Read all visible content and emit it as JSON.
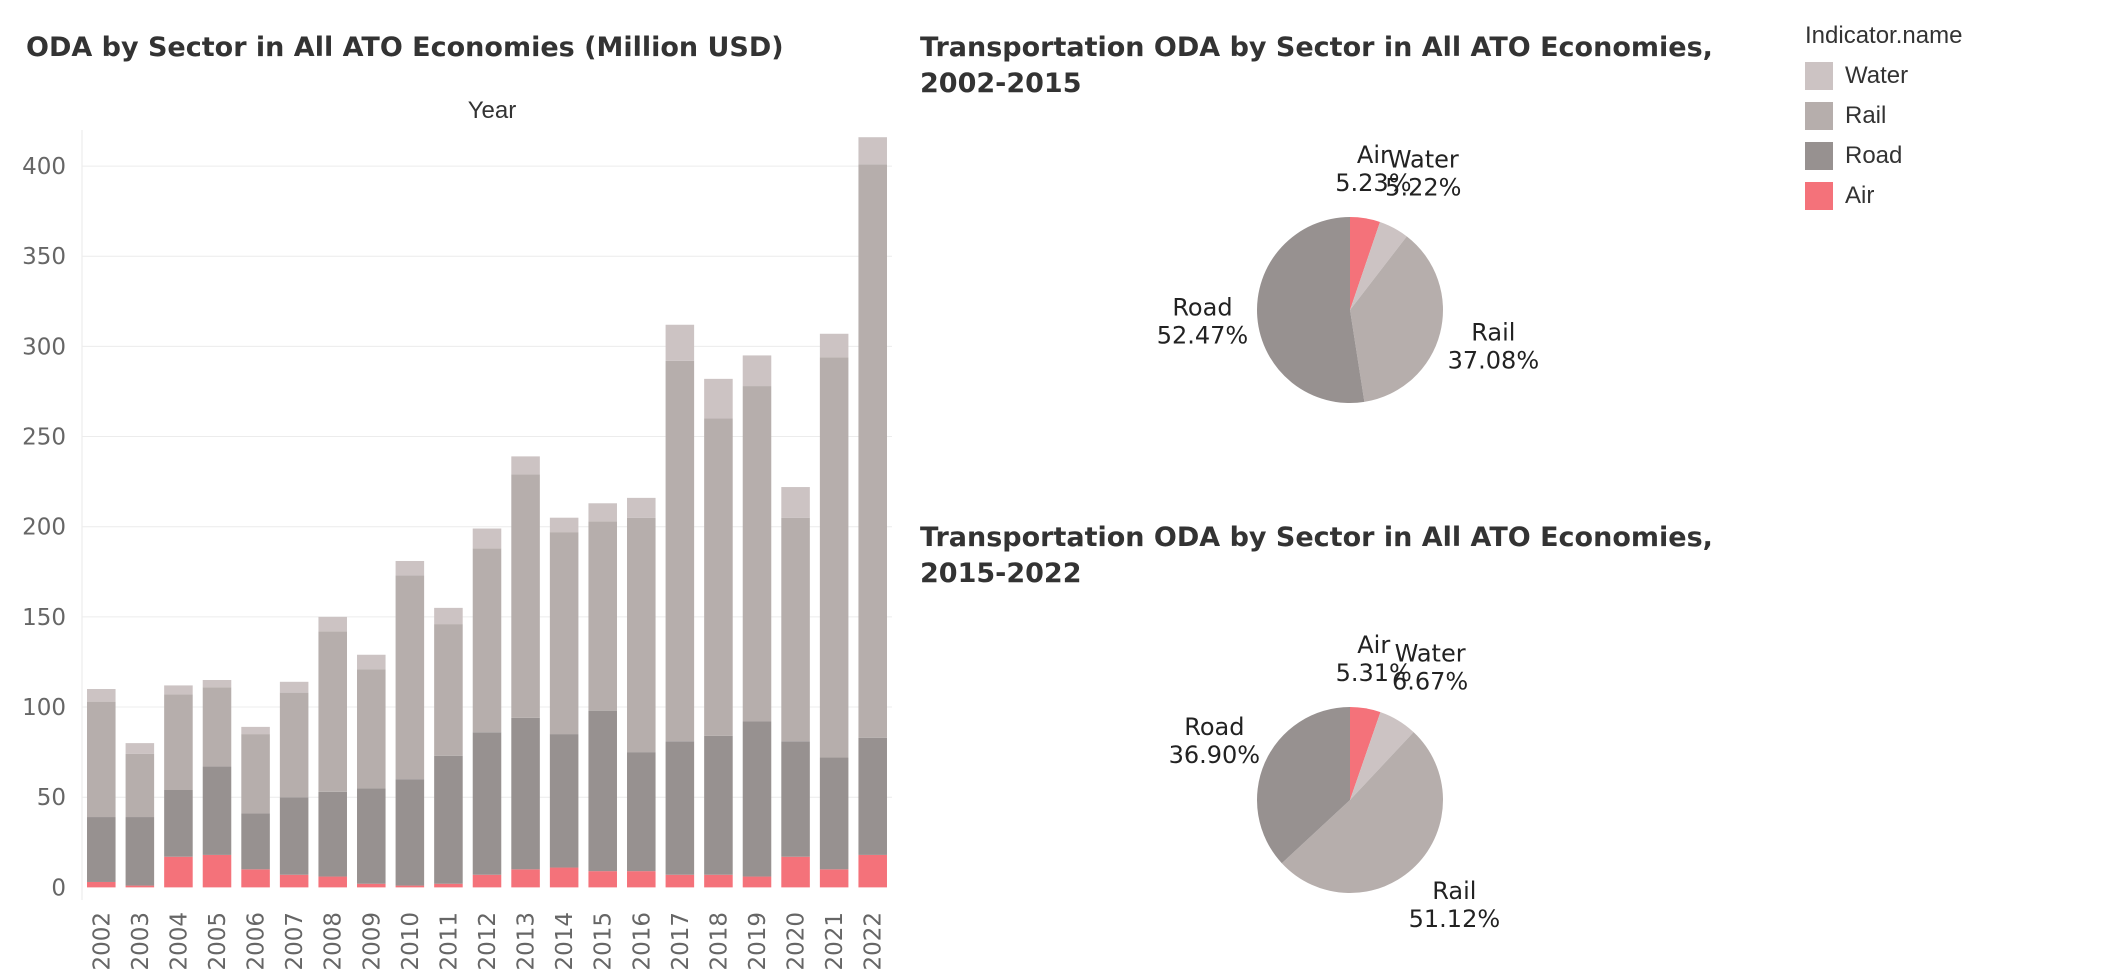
{
  "chart_data": [
    {
      "type": "bar",
      "stacked": true,
      "title": "ODA by Sector in All ATO Economies (Million USD)",
      "column_header": "Year",
      "categories": [
        "2002",
        "2003",
        "2004",
        "2005",
        "2006",
        "2007",
        "2008",
        "2009",
        "2010",
        "2011",
        "2012",
        "2013",
        "2014",
        "2015",
        "2016",
        "2017",
        "2018",
        "2019",
        "2020",
        "2021",
        "2022"
      ],
      "series": [
        {
          "name": "Air",
          "color": "#f4727a",
          "values": [
            3,
            1,
            17,
            18,
            10,
            7,
            6,
            2,
            1,
            2,
            7,
            10,
            11,
            9,
            9,
            7,
            7,
            6,
            17,
            10,
            18
          ]
        },
        {
          "name": "Road",
          "color": "#979190",
          "values": [
            36,
            38,
            37,
            49,
            31,
            43,
            47,
            53,
            59,
            71,
            79,
            84,
            74,
            89,
            66,
            74,
            77,
            86,
            64,
            62,
            65
          ]
        },
        {
          "name": "Rail",
          "color": "#b6aeac",
          "values": [
            64,
            35,
            53,
            44,
            44,
            58,
            89,
            66,
            113,
            73,
            102,
            135,
            112,
            105,
            130,
            211,
            176,
            186,
            124,
            222,
            318
          ]
        },
        {
          "name": "Water",
          "color": "#ccc3c3",
          "values": [
            7,
            6,
            5,
            4,
            4,
            6,
            8,
            8,
            8,
            9,
            11,
            10,
            8,
            10,
            11,
            20,
            22,
            17,
            17,
            13,
            15
          ]
        }
      ],
      "ylim": [
        -7,
        420
      ],
      "yticks": [
        0,
        50,
        100,
        150,
        200,
        250,
        300,
        350,
        400
      ],
      "grid": true
    },
    {
      "type": "pie",
      "title": "Transportation ODA by Sector in All ATO Economies, 2002-2015",
      "slices": [
        {
          "name": "Air",
          "value": 5.23,
          "label": "5.23%",
          "color": "#f4727a"
        },
        {
          "name": "Water",
          "value": 5.22,
          "label": "5.22%",
          "color": "#ccc3c3"
        },
        {
          "name": "Rail",
          "value": 37.08,
          "label": "37.08%",
          "color": "#b6aeac"
        },
        {
          "name": "Road",
          "value": 52.47,
          "label": "52.47%",
          "color": "#979190"
        }
      ]
    },
    {
      "type": "pie",
      "title": "Transportation ODA by Sector in All ATO Economies, 2015-2022",
      "slices": [
        {
          "name": "Air",
          "value": 5.31,
          "label": "5.31%",
          "color": "#f4727a"
        },
        {
          "name": "Water",
          "value": 6.67,
          "label": "6.67%",
          "color": "#ccc3c3"
        },
        {
          "name": "Rail",
          "value": 51.12,
          "label": "51.12%",
          "color": "#b6aeac"
        },
        {
          "name": "Road",
          "value": 36.9,
          "label": "36.90%",
          "color": "#979190"
        }
      ]
    }
  ],
  "legend": {
    "title": "Indicator.name",
    "items": [
      {
        "label": "Water",
        "color": "#ccc3c3"
      },
      {
        "label": "Rail",
        "color": "#b6aeac"
      },
      {
        "label": "Road",
        "color": "#979190"
      },
      {
        "label": "Air",
        "color": "#f4727a"
      }
    ]
  }
}
